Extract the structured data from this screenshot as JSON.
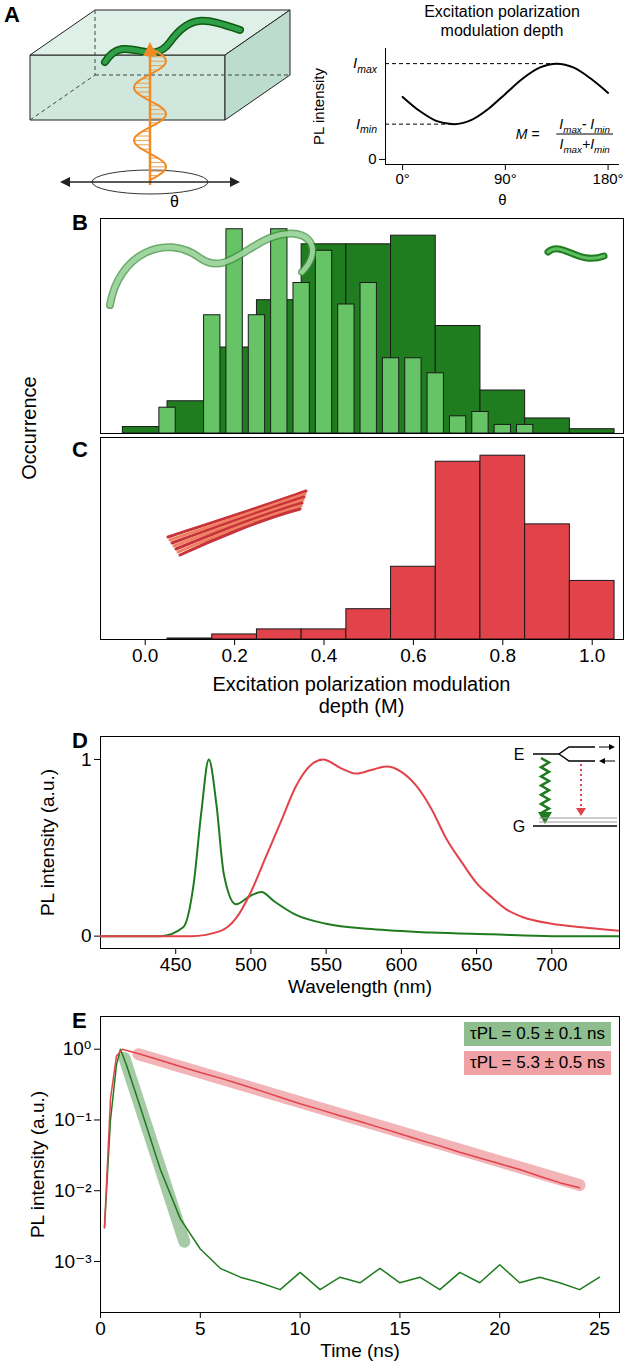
{
  "chart_data": [
    {
      "panel": "A",
      "type": "line",
      "title": "Excitation polarization modulation depth",
      "x": [
        0,
        15,
        30,
        45,
        60,
        75,
        90,
        105,
        120,
        135,
        150,
        165,
        180
      ],
      "values": [
        0.62,
        0.48,
        0.38,
        0.35,
        0.39,
        0.5,
        0.65,
        0.8,
        0.91,
        0.95,
        0.91,
        0.8,
        0.66
      ],
      "color": "#000000",
      "xlim": [
        -15,
        190
      ],
      "xticks": [
        {
          "value": 0,
          "label": "0°"
        },
        {
          "value": 90,
          "label": "90°"
        },
        {
          "value": 180,
          "label": "180°"
        }
      ],
      "ylim": [
        -0.05,
        1.1
      ],
      "yticks": [
        0
      ],
      "x_label": "θ",
      "y_label": "PL intensity",
      "annotations": [
        {
          "label": [
            {
              "text": "I",
              "subscript": "max"
            }
          ],
          "x": 135,
          "y": 0.95
        },
        {
          "label": [
            {
              "text": "I",
              "subscript": "min"
            }
          ],
          "x": 45,
          "y": 0.35
        }
      ],
      "formula": {
        "left": "M =",
        "numerator": [
          {
            "text": "I",
            "subscript": "max"
          },
          {
            "text": "- "
          },
          {
            "text": "I",
            "subscript": "min"
          }
        ],
        "denominator": [
          {
            "text": "I",
            "subscript": "max"
          },
          {
            "text": "+"
          },
          {
            "text": "I",
            "subscript": "min"
          }
        ]
      },
      "diagram": {
        "angle_label": "θ"
      }
    },
    {
      "panel": "B",
      "type": "histogram",
      "y_label": "Occurrence",
      "xlim": [
        -0.1,
        1.07
      ],
      "ylim": [
        0,
        1
      ],
      "tick_labels": false,
      "series": [
        {
          "color": "#1f7d1f",
          "bins": [
            -0.05,
            0.05,
            0.15,
            0.25,
            0.35,
            0.45,
            0.55,
            0.65,
            0.75,
            0.85,
            0.95,
            1.05
          ],
          "counts": [
            0.03,
            0.15,
            0.4,
            0.62,
            0.88,
            0.88,
            0.92,
            0.5,
            0.2,
            0.07,
            0.02
          ]
        },
        {
          "color": "#66c466",
          "bins": [
            0.025,
            0.075,
            0.125,
            0.175,
            0.225,
            0.275,
            0.325,
            0.375,
            0.425,
            0.475,
            0.525,
            0.575,
            0.625,
            0.675,
            0.725,
            0.775,
            0.825,
            0.875,
            0.925,
            0.975
          ],
          "counts": [
            0.12,
            0.0,
            0.55,
            0.95,
            0.55,
            0.95,
            0.7,
            0.85,
            0.6,
            0.7,
            0.35,
            0.35,
            0.28,
            0.08,
            0.1,
            0.04,
            0.04,
            0.0,
            0.0
          ]
        }
      ]
    },
    {
      "panel": "C",
      "type": "histogram",
      "x_label": "Excitation polarization modulation depth (M)",
      "xlim": [
        -0.1,
        1.07
      ],
      "xticks": [
        {
          "value": 0,
          "label": "0.0"
        },
        {
          "value": 0.2,
          "label": "0.2"
        },
        {
          "value": 0.4,
          "label": "0.4"
        },
        {
          "value": 0.6,
          "label": "0.6"
        },
        {
          "value": 0.8,
          "label": "0.8"
        },
        {
          "value": 1,
          "label": "1.0"
        }
      ],
      "ylim": [
        0,
        1
      ],
      "tick_labels": "x",
      "color": "#e2434b",
      "bins": [
        0.05,
        0.15,
        0.25,
        0.35,
        0.45,
        0.55,
        0.65,
        0.75,
        0.85,
        0.95,
        1.05
      ],
      "counts": [
        0.005,
        0.025,
        0.05,
        0.05,
        0.15,
        0.36,
        0.88,
        0.91,
        0.57,
        0.29
      ]
    },
    {
      "panel": "D",
      "type": "line",
      "x_label": "Wavelength (nm)",
      "y_label": "PL intensity (a.u.)",
      "xlim": [
        400,
        745
      ],
      "xticks": [
        450,
        500,
        550,
        600,
        650,
        700
      ],
      "ylim": [
        -0.07,
        1.13
      ],
      "yticks": [
        0,
        1
      ],
      "series": [
        {
          "color": "#1e7b1e",
          "x": [
            400,
            440,
            455,
            462,
            467,
            472,
            477,
            482,
            490,
            500,
            507,
            515,
            530,
            550,
            580,
            620,
            660,
            700,
            745
          ],
          "values": [
            0,
            0,
            0.05,
            0.3,
            0.7,
            1.0,
            0.75,
            0.35,
            0.18,
            0.23,
            0.25,
            0.2,
            0.12,
            0.07,
            0.04,
            0.02,
            0.01,
            0,
            0
          ]
        },
        {
          "color": "#e2434b",
          "x": [
            400,
            460,
            480,
            490,
            500,
            510,
            520,
            530,
            540,
            548,
            560,
            570,
            580,
            590,
            600,
            610,
            620,
            630,
            640,
            650,
            660,
            670,
            680,
            700,
            720,
            745
          ],
          "values": [
            0,
            0,
            0.03,
            0.1,
            0.25,
            0.45,
            0.65,
            0.85,
            0.97,
            1.0,
            0.95,
            0.92,
            0.94,
            0.96,
            0.93,
            0.85,
            0.72,
            0.55,
            0.42,
            0.3,
            0.22,
            0.15,
            0.11,
            0.07,
            0.05,
            0.03
          ]
        }
      ],
      "inset": {
        "upper_label": "E",
        "lower_label": "G"
      }
    },
    {
      "panel": "E",
      "type": "line",
      "log": "y",
      "x_label": "Time (ns)",
      "y_label": "PL intensity (a.u.)",
      "xlim": [
        0,
        26
      ],
      "xticks": [
        0,
        5,
        10,
        15,
        20,
        25
      ],
      "ylim": [
        0.00019,
        2.9
      ],
      "yticks": [
        {
          "value": 0.001,
          "label": "10⁻³"
        },
        {
          "value": 0.01,
          "label": "10⁻²"
        },
        {
          "value": 0.1,
          "label": "10⁻¹"
        },
        {
          "value": 1,
          "label": "10⁰"
        }
      ],
      "legend": "top-right",
      "series": [
        {
          "name": "τPL = 0.5 ± 0.1 ns",
          "color": "#1e7b1e",
          "x": [
            0.2,
            0.5,
            0.8,
            1.0,
            1.3,
            2,
            3,
            4,
            5,
            6,
            7,
            8,
            9,
            10,
            11,
            12,
            13,
            14,
            15,
            16,
            17,
            18,
            19,
            20,
            21,
            22,
            23,
            24,
            25
          ],
          "values": [
            0.003,
            0.1,
            0.6,
            1.0,
            0.6,
            0.15,
            0.02,
            0.004,
            0.0015,
            0.0008,
            0.0006,
            0.0005,
            0.0004,
            0.0007,
            0.0004,
            0.0006,
            0.0005,
            0.0008,
            0.0005,
            0.0006,
            0.0004,
            0.0007,
            0.0005,
            0.0009,
            0.0005,
            0.0006,
            0.0005,
            0.0004,
            0.0006
          ],
          "fit": {
            "x": [
              1.2,
              4.2
            ],
            "values": [
              0.75,
              0.0019
            ]
          }
        },
        {
          "name": "τPL = 5.3 ± 0.5 ns",
          "color": "#e2434b",
          "x": [
            0.2,
            0.5,
            0.8,
            1.1,
            2,
            3,
            4,
            5,
            6,
            7,
            8,
            9,
            10,
            11,
            12,
            13,
            14,
            15,
            16,
            17,
            18,
            19,
            20,
            21,
            22,
            23,
            24
          ],
          "values": [
            0.003,
            0.2,
            0.8,
            1.0,
            0.85,
            0.7,
            0.57,
            0.47,
            0.39,
            0.32,
            0.26,
            0.21,
            0.17,
            0.14,
            0.115,
            0.095,
            0.078,
            0.064,
            0.052,
            0.043,
            0.035,
            0.029,
            0.024,
            0.02,
            0.016,
            0.013,
            0.011
          ],
          "fit": {
            "x": [
              1.9,
              24
            ],
            "values": [
              0.85,
              0.012
            ]
          }
        }
      ]
    }
  ]
}
